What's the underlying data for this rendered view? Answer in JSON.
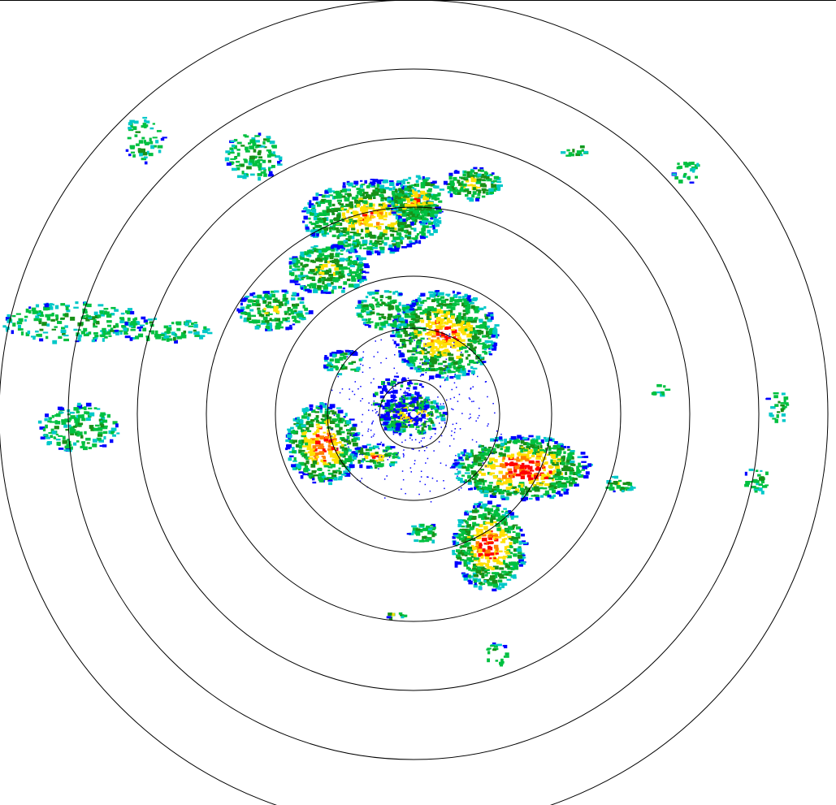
{
  "radar": {
    "type": "ppi-reflectivity",
    "range_rings": 7,
    "ring_color": "#000000",
    "background": "#ffffff",
    "colors": {
      "weak": "#0000ff",
      "light": "#00c8c8",
      "moderate": "#00c040",
      "moderate_dark": "#189018",
      "heavy": "#ffe000",
      "intense": "#ff8000",
      "extreme": "#ff0000"
    }
  }
}
